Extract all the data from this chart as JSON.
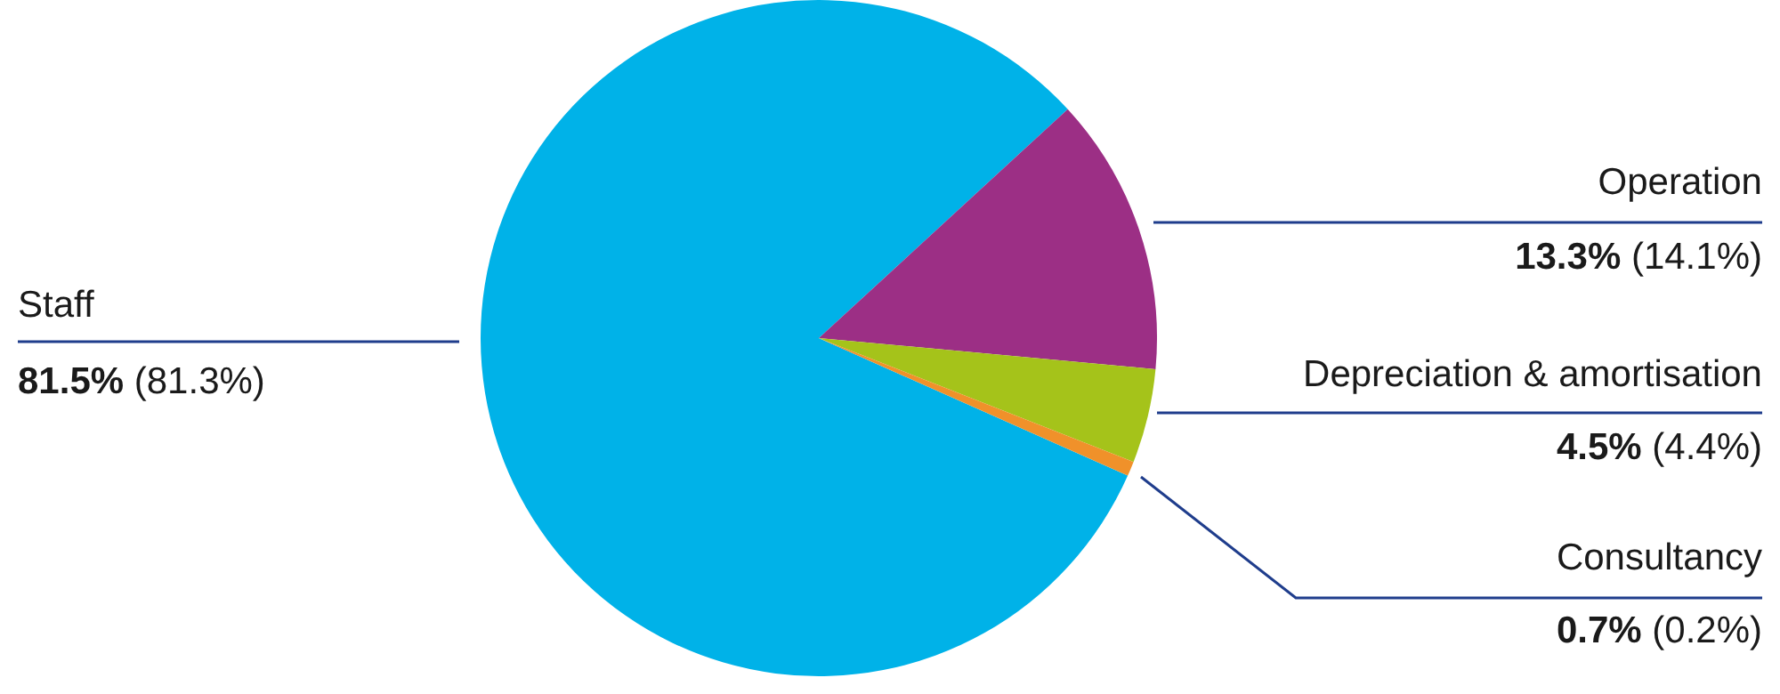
{
  "chart_data": {
    "type": "pie",
    "categories": [
      "Staff",
      "Operation",
      "Depreciation & amortisation",
      "Consultancy"
    ],
    "values": [
      81.5,
      13.3,
      4.5,
      0.7
    ],
    "colors": [
      "#00b2e8",
      "#9c2f85",
      "#a5c31a",
      "#f0912a"
    ],
    "value_labels": [
      "81.5%",
      "13.3%",
      "4.5%",
      "0.7%"
    ],
    "annotations": [
      "(81.3%)",
      "(14.1%)",
      "(4.4%)",
      "(0.2%)"
    ],
    "legend": false
  }
}
